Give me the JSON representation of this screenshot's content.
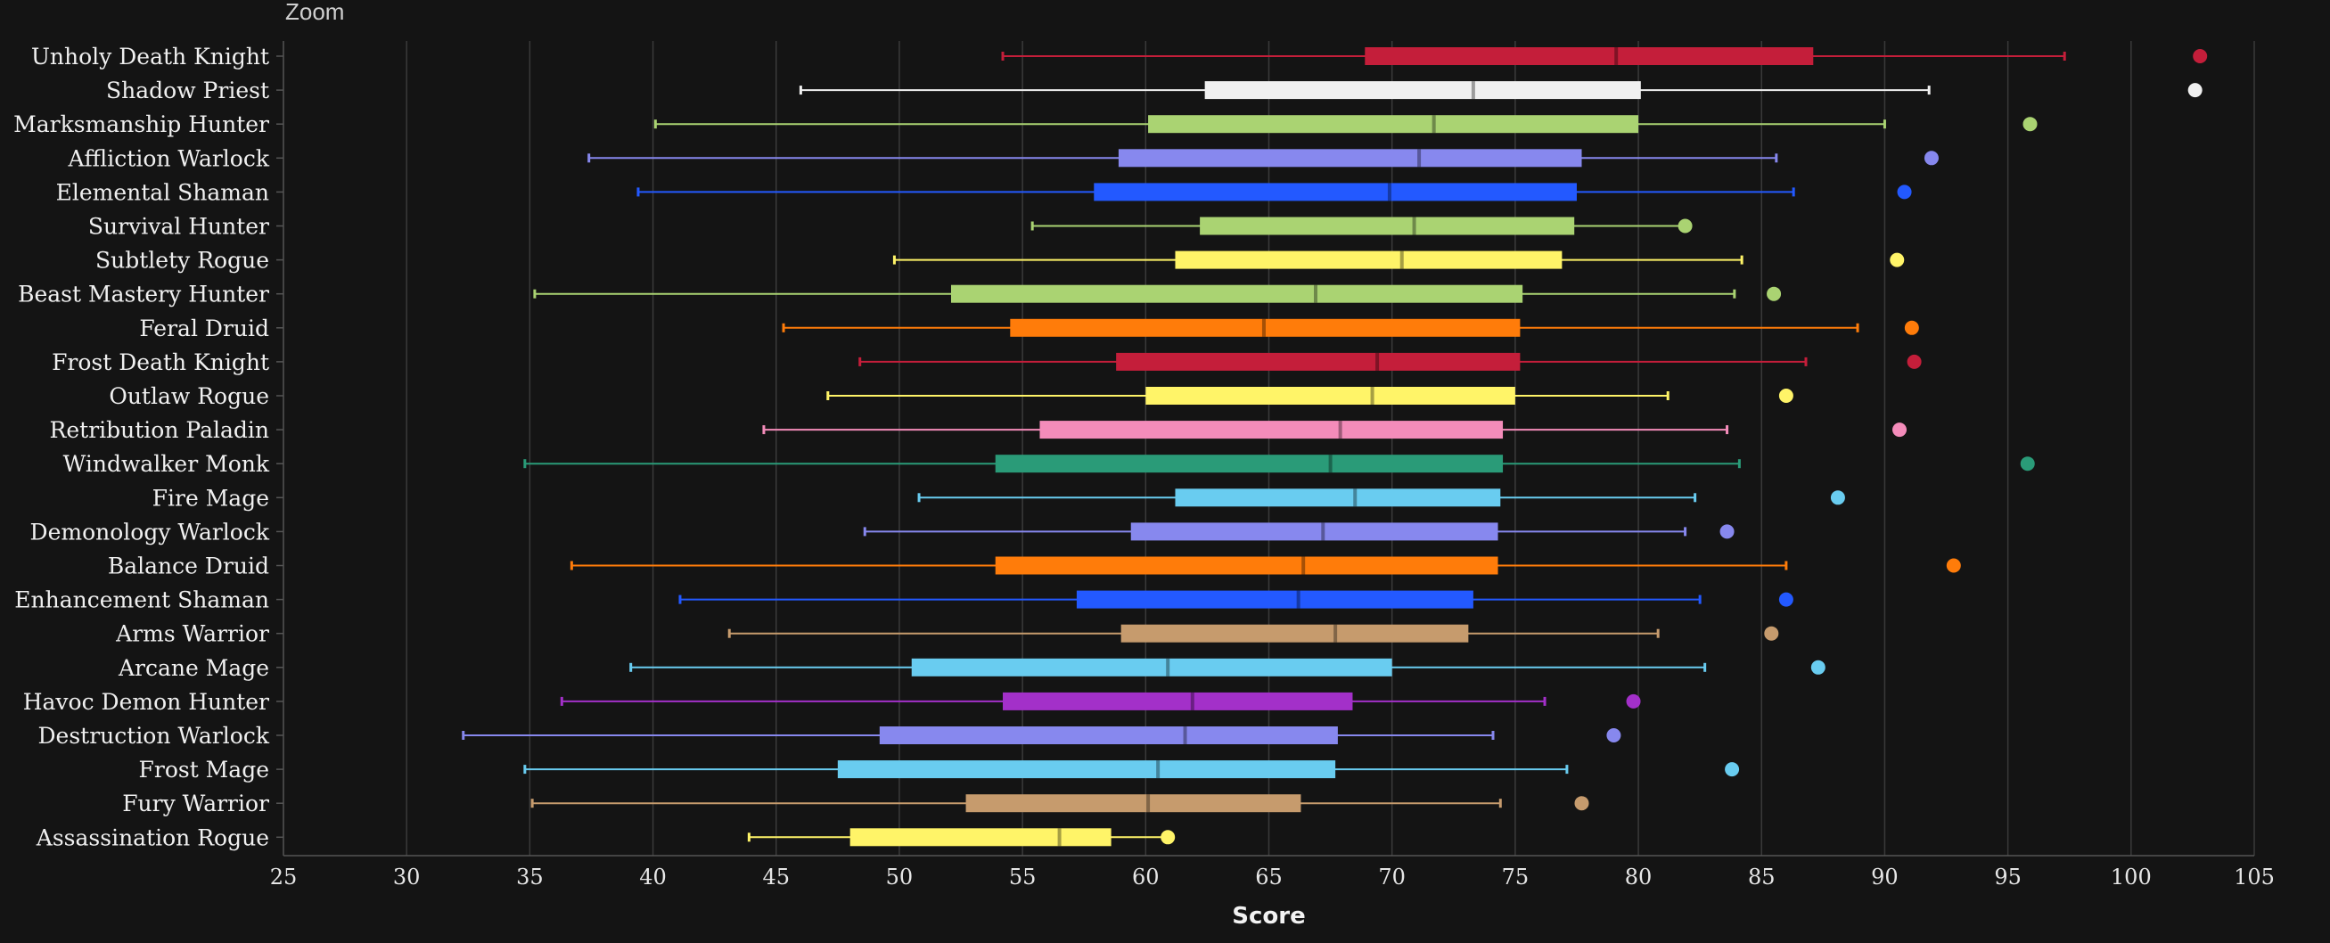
{
  "header": {
    "zoom_label": "Zoom"
  },
  "chart_data": {
    "type": "boxplot",
    "xlabel": "Score",
    "xlim": [
      25,
      105
    ],
    "xticks": [
      25,
      30,
      35,
      40,
      45,
      50,
      55,
      60,
      65,
      70,
      75,
      80,
      85,
      90,
      95,
      100,
      105
    ],
    "grid": true,
    "legend": "none",
    "series": [
      {
        "name": "Unholy Death Knight",
        "color": "#C41E3A",
        "min": 54.2,
        "q1": 68.9,
        "median": 79.1,
        "q3": 87.1,
        "max": 97.3,
        "max_point": 102.8
      },
      {
        "name": "Shadow Priest",
        "color": "#F0F0F0",
        "min": 46.0,
        "q1": 62.4,
        "median": 73.3,
        "q3": 80.1,
        "max": 91.8,
        "max_point": 102.6
      },
      {
        "name": "Marksmanship Hunter",
        "color": "#AAD372",
        "min": 40.1,
        "q1": 60.1,
        "median": 71.7,
        "q3": 80.0,
        "max": 90.0,
        "max_point": 95.9
      },
      {
        "name": "Affliction Warlock",
        "color": "#8788EE",
        "min": 37.4,
        "q1": 58.9,
        "median": 71.1,
        "q3": 77.7,
        "max": 85.6,
        "max_point": 91.9
      },
      {
        "name": "Elemental Shaman",
        "color": "#2359FF",
        "min": 39.4,
        "q1": 57.9,
        "median": 69.9,
        "q3": 77.5,
        "max": 86.3,
        "max_point": 90.8
      },
      {
        "name": "Survival Hunter",
        "color": "#AAD372",
        "min": 55.4,
        "q1": 62.2,
        "median": 70.9,
        "q3": 77.4,
        "max": 81.9,
        "max_point": 81.9
      },
      {
        "name": "Subtlety Rogue",
        "color": "#FFF468",
        "min": 49.8,
        "q1": 61.2,
        "median": 70.4,
        "q3": 76.9,
        "max": 84.2,
        "max_point": 90.5
      },
      {
        "name": "Beast Mastery Hunter",
        "color": "#AAD372",
        "min": 35.2,
        "q1": 52.1,
        "median": 66.9,
        "q3": 75.3,
        "max": 83.9,
        "max_point": 85.5
      },
      {
        "name": "Feral Druid",
        "color": "#FF7C0A",
        "min": 45.3,
        "q1": 54.5,
        "median": 64.8,
        "q3": 75.2,
        "max": 88.9,
        "max_point": 91.1
      },
      {
        "name": "Frost Death Knight",
        "color": "#C41E3A",
        "min": 48.4,
        "q1": 58.8,
        "median": 69.4,
        "q3": 75.2,
        "max": 86.8,
        "max_point": 91.2
      },
      {
        "name": "Outlaw Rogue",
        "color": "#FFF468",
        "min": 47.1,
        "q1": 60.0,
        "median": 69.2,
        "q3": 75.0,
        "max": 81.2,
        "max_point": 86.0
      },
      {
        "name": "Retribution Paladin",
        "color": "#F48CBA",
        "min": 44.5,
        "q1": 55.7,
        "median": 67.9,
        "q3": 74.5,
        "max": 83.6,
        "max_point": 90.6
      },
      {
        "name": "Windwalker Monk",
        "color": "#2A9B78",
        "min": 34.8,
        "q1": 53.9,
        "median": 67.5,
        "q3": 74.5,
        "max": 84.1,
        "max_point": 95.8
      },
      {
        "name": "Fire Mage",
        "color": "#69CCF0",
        "min": 50.8,
        "q1": 61.2,
        "median": 68.5,
        "q3": 74.4,
        "max": 82.3,
        "max_point": 88.1
      },
      {
        "name": "Demonology Warlock",
        "color": "#8788EE",
        "min": 48.6,
        "q1": 59.4,
        "median": 67.2,
        "q3": 74.3,
        "max": 81.9,
        "max_point": 83.6
      },
      {
        "name": "Balance Druid",
        "color": "#FF7C0A",
        "min": 36.7,
        "q1": 53.9,
        "median": 66.4,
        "q3": 74.3,
        "max": 86.0,
        "max_point": 92.8
      },
      {
        "name": "Enhancement Shaman",
        "color": "#2359FF",
        "min": 41.1,
        "q1": 57.2,
        "median": 66.2,
        "q3": 73.3,
        "max": 82.5,
        "max_point": 86.0
      },
      {
        "name": "Arms Warrior",
        "color": "#C69B6D",
        "min": 43.1,
        "q1": 59.0,
        "median": 67.7,
        "q3": 73.1,
        "max": 80.8,
        "max_point": 85.4
      },
      {
        "name": "Arcane Mage",
        "color": "#69CCF0",
        "min": 39.1,
        "q1": 50.5,
        "median": 60.9,
        "q3": 70.0,
        "max": 82.7,
        "max_point": 87.3
      },
      {
        "name": "Havoc Demon Hunter",
        "color": "#A330C9",
        "min": 36.3,
        "q1": 54.2,
        "median": 61.9,
        "q3": 68.4,
        "max": 76.2,
        "max_point": 79.8
      },
      {
        "name": "Destruction Warlock",
        "color": "#8788EE",
        "min": 32.3,
        "q1": 49.2,
        "median": 61.6,
        "q3": 67.8,
        "max": 74.1,
        "max_point": 79.0
      },
      {
        "name": "Frost Mage",
        "color": "#69CCF0",
        "min": 34.8,
        "q1": 47.5,
        "median": 60.5,
        "q3": 67.7,
        "max": 77.1,
        "max_point": 83.8
      },
      {
        "name": "Fury Warrior",
        "color": "#C69B6D",
        "min": 35.1,
        "q1": 52.7,
        "median": 60.1,
        "q3": 66.3,
        "max": 74.4,
        "max_point": 77.7
      },
      {
        "name": "Assassination Rogue",
        "color": "#FFF468",
        "min": 43.9,
        "q1": 48.0,
        "median": 56.5,
        "q3": 58.6,
        "max": 60.8,
        "max_point": 60.9
      }
    ]
  }
}
